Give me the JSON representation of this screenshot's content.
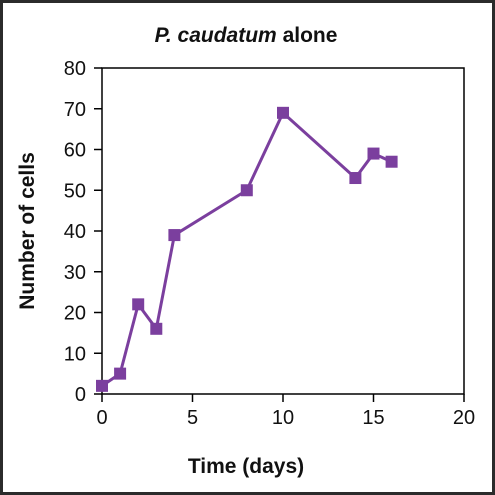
{
  "chart_data": {
    "type": "line",
    "title_italic": "P. caudatum",
    "title_rest": " alone",
    "xlabel": "Time (days)",
    "ylabel": "Number of cells",
    "xlim": [
      0,
      20
    ],
    "ylim": [
      0,
      80
    ],
    "x_ticks": [
      0,
      5,
      10,
      15,
      20
    ],
    "y_ticks": [
      0,
      10,
      20,
      30,
      40,
      50,
      60,
      70,
      80
    ],
    "grid": false,
    "legend": "none",
    "marker": "square",
    "series": [
      {
        "color": "#7b3f9e",
        "points": [
          {
            "x": 0,
            "y": 2
          },
          {
            "x": 1,
            "y": 5
          },
          {
            "x": 2,
            "y": 22
          },
          {
            "x": 3,
            "y": 16
          },
          {
            "x": 4,
            "y": 39
          },
          {
            "x": 8,
            "y": 50
          },
          {
            "x": 10,
            "y": 69
          },
          {
            "x": 14,
            "y": 53
          },
          {
            "x": 15,
            "y": 59
          },
          {
            "x": 16,
            "y": 57
          }
        ]
      }
    ]
  }
}
